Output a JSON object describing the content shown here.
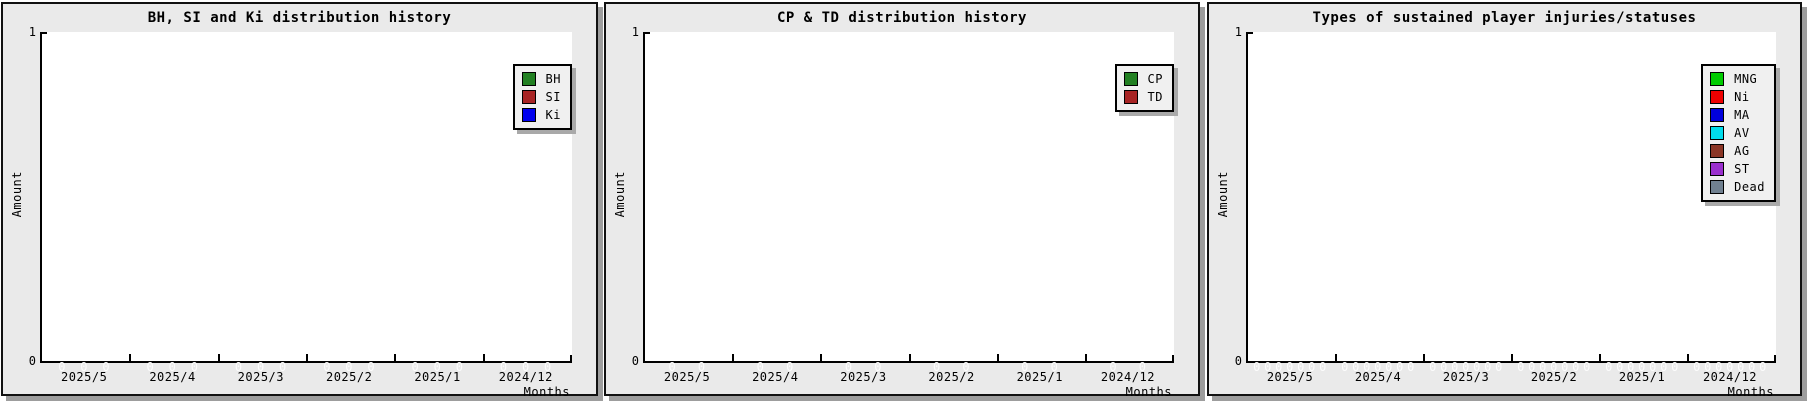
{
  "charts": [
    {
      "title": "BH, SI and Ki distribution history",
      "y_axis": {
        "label": "Amount",
        "ticks": [
          "1",
          "0"
        ]
      },
      "x_axis": {
        "label": "Months",
        "tick_labels": [
          "2025/5",
          "2025/4",
          "2025/3",
          "2025/2",
          "2025/1",
          "2024/12"
        ]
      },
      "legend": [
        {
          "name": "BH",
          "color": "#228022"
        },
        {
          "name": "SI",
          "color": "#a82424"
        },
        {
          "name": "Ki",
          "color": "#0000ee"
        }
      ],
      "data_point_label": "0"
    },
    {
      "title": "CP & TD distribution history",
      "y_axis": {
        "label": "Amount",
        "ticks": [
          "1",
          "0"
        ]
      },
      "x_axis": {
        "label": "Months",
        "tick_labels": [
          "2025/5",
          "2025/4",
          "2025/3",
          "2025/2",
          "2025/1",
          "2024/12"
        ]
      },
      "legend": [
        {
          "name": "CP",
          "color": "#228022"
        },
        {
          "name": "TD",
          "color": "#a82424"
        }
      ],
      "data_point_label": "0"
    },
    {
      "title": "Types of sustained player injuries/statuses",
      "y_axis": {
        "label": "Amount",
        "ticks": [
          "1",
          "0"
        ]
      },
      "x_axis": {
        "label": "Months",
        "tick_labels": [
          "2025/5",
          "2025/4",
          "2025/3",
          "2025/2",
          "2025/1",
          "2024/12"
        ]
      },
      "legend": [
        {
          "name": "MNG",
          "color": "#00cc00"
        },
        {
          "name": "Ni",
          "color": "#ee0000"
        },
        {
          "name": "MA",
          "color": "#0000dd"
        },
        {
          "name": "AV",
          "color": "#00dcec"
        },
        {
          "name": "AG",
          "color": "#8b3626"
        },
        {
          "name": "ST",
          "color": "#9a30ce"
        },
        {
          "name": "Dead",
          "color": "#708090"
        }
      ],
      "data_point_label": "0"
    }
  ],
  "chart_data": [
    {
      "type": "line",
      "title": "BH, SI and Ki distribution history",
      "xlabel": "Months",
      "ylabel": "Amount",
      "x": [
        "2025/5",
        "2025/4",
        "2025/3",
        "2025/2",
        "2025/1",
        "2024/12"
      ],
      "ylim": [
        0,
        1
      ],
      "grid": false,
      "legend_position": "upper right",
      "series": [
        {
          "name": "BH",
          "color": "#228022",
          "values": [
            0,
            0,
            0,
            0,
            0,
            0
          ]
        },
        {
          "name": "SI",
          "color": "#a82424",
          "values": [
            0,
            0,
            0,
            0,
            0,
            0
          ]
        },
        {
          "name": "Ki",
          "color": "#0000ee",
          "values": [
            0,
            0,
            0,
            0,
            0,
            0
          ]
        }
      ]
    },
    {
      "type": "line",
      "title": "CP & TD distribution history",
      "xlabel": "Months",
      "ylabel": "Amount",
      "x": [
        "2025/5",
        "2025/4",
        "2025/3",
        "2025/2",
        "2025/1",
        "2024/12"
      ],
      "ylim": [
        0,
        1
      ],
      "grid": false,
      "legend_position": "upper right",
      "series": [
        {
          "name": "CP",
          "color": "#228022",
          "values": [
            0,
            0,
            0,
            0,
            0,
            0
          ]
        },
        {
          "name": "TD",
          "color": "#a82424",
          "values": [
            0,
            0,
            0,
            0,
            0,
            0
          ]
        }
      ]
    },
    {
      "type": "line",
      "title": "Types of sustained player injuries/statuses",
      "xlabel": "Months",
      "ylabel": "Amount",
      "x": [
        "2025/5",
        "2025/4",
        "2025/3",
        "2025/2",
        "2025/1",
        "2024/12"
      ],
      "ylim": [
        0,
        1
      ],
      "grid": false,
      "legend_position": "upper right",
      "series": [
        {
          "name": "MNG",
          "color": "#00cc00",
          "values": [
            0,
            0,
            0,
            0,
            0,
            0
          ]
        },
        {
          "name": "Ni",
          "color": "#ee0000",
          "values": [
            0,
            0,
            0,
            0,
            0,
            0
          ]
        },
        {
          "name": "MA",
          "color": "#0000dd",
          "values": [
            0,
            0,
            0,
            0,
            0,
            0
          ]
        },
        {
          "name": "AV",
          "color": "#00dcec",
          "values": [
            0,
            0,
            0,
            0,
            0,
            0
          ]
        },
        {
          "name": "AG",
          "color": "#8b3626",
          "values": [
            0,
            0,
            0,
            0,
            0,
            0
          ]
        },
        {
          "name": "ST",
          "color": "#9a30ce",
          "values": [
            0,
            0,
            0,
            0,
            0,
            0
          ]
        },
        {
          "name": "Dead",
          "color": "#708090",
          "values": [
            0,
            0,
            0,
            0,
            0,
            0
          ]
        }
      ]
    }
  ]
}
